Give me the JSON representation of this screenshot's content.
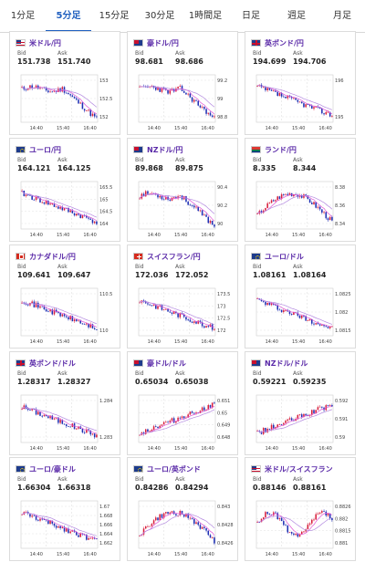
{
  "tabs": [
    {
      "label": "1分足",
      "active": false
    },
    {
      "label": "5分足",
      "active": true
    },
    {
      "label": "15分足",
      "active": false
    },
    {
      "label": "30分足",
      "active": false
    },
    {
      "label": "1時間足",
      "active": false
    },
    {
      "label": "日足",
      "active": false
    },
    {
      "label": "週足",
      "active": false
    },
    {
      "label": "月足",
      "active": false
    }
  ],
  "labels": {
    "bid": "Bid",
    "ask": "Ask"
  },
  "colors": {
    "up": "#d81e3c",
    "down": "#1e2fb4",
    "ma1": "#e055d6",
    "ma2": "#b48ae0",
    "pair": "#5a2aa8",
    "accent": "#1f5fbf"
  },
  "cards": [
    {
      "pair": "米ドル/円",
      "flag": "us",
      "bid": "151.738",
      "ask": "151.740",
      "yticks": [
        "153",
        "152.5",
        "152"
      ],
      "xticks": [
        "14:40",
        "15:40",
        "16:40"
      ],
      "trend": "down-late",
      "seed": 11
    },
    {
      "pair": "豪ドル/円",
      "flag": "au",
      "bid": "98.681",
      "ask": "98.686",
      "yticks": [
        "99.2",
        "99",
        "98.8"
      ],
      "xticks": [
        "14:40",
        "15:40",
        "16:40"
      ],
      "trend": "down-late",
      "seed": 23
    },
    {
      "pair": "英ポンド/円",
      "flag": "gb",
      "bid": "194.699",
      "ask": "194.706",
      "yticks": [
        "196",
        "195"
      ],
      "xticks": [
        "14:40",
        "15:40",
        "16:40"
      ],
      "trend": "down",
      "seed": 37
    },
    {
      "pair": "ユーロ/円",
      "flag": "eu",
      "bid": "164.121",
      "ask": "164.125",
      "yticks": [
        "165.5",
        "165",
        "164.5",
        "164"
      ],
      "xticks": [
        "14:40",
        "15:40",
        "16:40"
      ],
      "trend": "down",
      "seed": 41
    },
    {
      "pair": "NZドル/円",
      "flag": "nz",
      "bid": "89.868",
      "ask": "89.875",
      "yticks": [
        "90.4",
        "90.2",
        "90"
      ],
      "xticks": [
        "14:40",
        "15:40",
        "16:40"
      ],
      "trend": "down-late",
      "seed": 53
    },
    {
      "pair": "ランド/円",
      "flag": "za",
      "bid": "8.335",
      "ask": "8.344",
      "yticks": [
        "8.38",
        "8.36",
        "8.34"
      ],
      "xticks": [
        "14:40",
        "15:40",
        "16:40"
      ],
      "trend": "hump",
      "seed": 67
    },
    {
      "pair": "カナダドル/円",
      "flag": "ca",
      "bid": "109.641",
      "ask": "109.647",
      "yticks": [
        "110.5",
        "110"
      ],
      "xticks": [
        "14:40",
        "15:40",
        "16:40"
      ],
      "trend": "down",
      "seed": 71
    },
    {
      "pair": "スイスフラン/円",
      "flag": "ch",
      "bid": "172.036",
      "ask": "172.052",
      "yticks": [
        "173.5",
        "173",
        "172.5",
        "172"
      ],
      "xticks": [
        "14:40",
        "15:40",
        "16:40"
      ],
      "trend": "down",
      "seed": 83
    },
    {
      "pair": "ユーロ/ドル",
      "flag": "eu",
      "bid": "1.08161",
      "ask": "1.08164",
      "yticks": [
        "1.0825",
        "1.082",
        "1.0815"
      ],
      "xticks": [
        "14:40",
        "15:40",
        "16:40"
      ],
      "trend": "down",
      "seed": 97
    },
    {
      "pair": "英ポンド/ドル",
      "flag": "gb",
      "bid": "1.28317",
      "ask": "1.28327",
      "yticks": [
        "1.284",
        "1.283"
      ],
      "xticks": [
        "14:40",
        "15:40",
        "16:40"
      ],
      "trend": "down",
      "seed": 101
    },
    {
      "pair": "豪ドル/ドル",
      "flag": "au",
      "bid": "0.65034",
      "ask": "0.65038",
      "yticks": [
        "0.651",
        "0.65",
        "0.649",
        "0.648"
      ],
      "xticks": [
        "14:40",
        "15:40",
        "16:40"
      ],
      "trend": "up",
      "seed": 113
    },
    {
      "pair": "NZドル/ドル",
      "flag": "nz",
      "bid": "0.59221",
      "ask": "0.59235",
      "yticks": [
        "0.592",
        "0.591",
        "0.59"
      ],
      "xticks": [
        "14:40",
        "15:40",
        "16:40"
      ],
      "trend": "up",
      "seed": 127
    },
    {
      "pair": "ユーロ/豪ドル",
      "flag": "eu",
      "bid": "1.66304",
      "ask": "1.66318",
      "yticks": [
        "1.67",
        "1.668",
        "1.666",
        "1.664",
        "1.662"
      ],
      "xticks": [
        "14:40",
        "15:40",
        "16:40"
      ],
      "trend": "down",
      "seed": 131
    },
    {
      "pair": "ユーロ/英ポンド",
      "flag": "eu",
      "bid": "0.84286",
      "ask": "0.84294",
      "yticks": [
        "0.843",
        "0.8428",
        "0.8426"
      ],
      "xticks": [
        "14:40",
        "15:40",
        "16:40"
      ],
      "trend": "hump",
      "seed": 149
    },
    {
      "pair": "米ドル/スイスフラン",
      "flag": "us",
      "bid": "0.88146",
      "ask": "0.88161",
      "yticks": [
        "0.8826",
        "0.882",
        "0.8815",
        "0.881"
      ],
      "xticks": [
        "14:40",
        "15:40",
        "16:40"
      ],
      "trend": "wave",
      "seed": 157
    }
  ]
}
